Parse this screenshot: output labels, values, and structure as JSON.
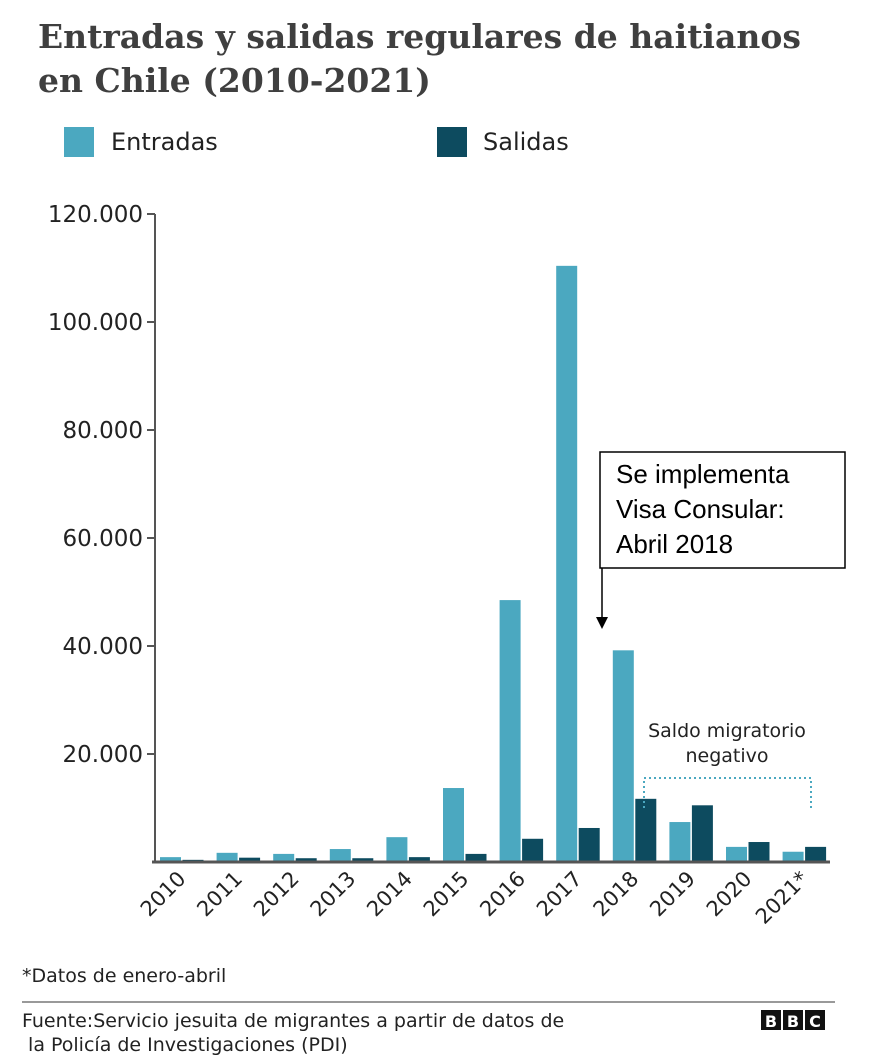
{
  "chart_data": {
    "type": "bar",
    "title_lines": [
      "Entradas y salidas regulares de haitianos",
      "en Chile (2010-2021)"
    ],
    "categories": [
      "2010",
      "2011",
      "2012",
      "2013",
      "2014",
      "2015",
      "2016",
      "2017",
      "2018",
      "2019",
      "2020",
      "2021*"
    ],
    "series": [
      {
        "name": "Entradas",
        "color": "#4ba8c0",
        "values": [
          900,
          1700,
          1500,
          2400,
          4600,
          13700,
          48500,
          110400,
          39200,
          7400,
          2800,
          1900
        ]
      },
      {
        "name": "Salidas",
        "color": "#0d4b5f",
        "values": [
          400,
          800,
          700,
          700,
          900,
          1500,
          4300,
          6300,
          11700,
          10500,
          3700,
          2800
        ]
      }
    ],
    "yticks": [
      {
        "value": 20000,
        "label": "20.000"
      },
      {
        "value": 40000,
        "label": "40.000"
      },
      {
        "value": 60000,
        "label": "60.000"
      },
      {
        "value": 80000,
        "label": "80.000"
      },
      {
        "value": 100000,
        "label": "100.000"
      },
      {
        "value": 120000,
        "label": "120.000"
      }
    ],
    "ylim": [
      0,
      120000
    ],
    "xlabel": "",
    "ylabel": "",
    "legend_position": "top",
    "annotations": {
      "visa_box": [
        "Se implementa",
        "Visa Consular:",
        "Abril 2018"
      ],
      "saldo": [
        "Saldo migratorio",
        "negativo"
      ]
    },
    "footnote": "*Datos de enero-abril",
    "source_lines": [
      "Fuente:Servicio jesuita de migrantes a partir de datos de",
      " la Policía de Investigaciones (PDI)"
    ],
    "logo": "BBC"
  }
}
